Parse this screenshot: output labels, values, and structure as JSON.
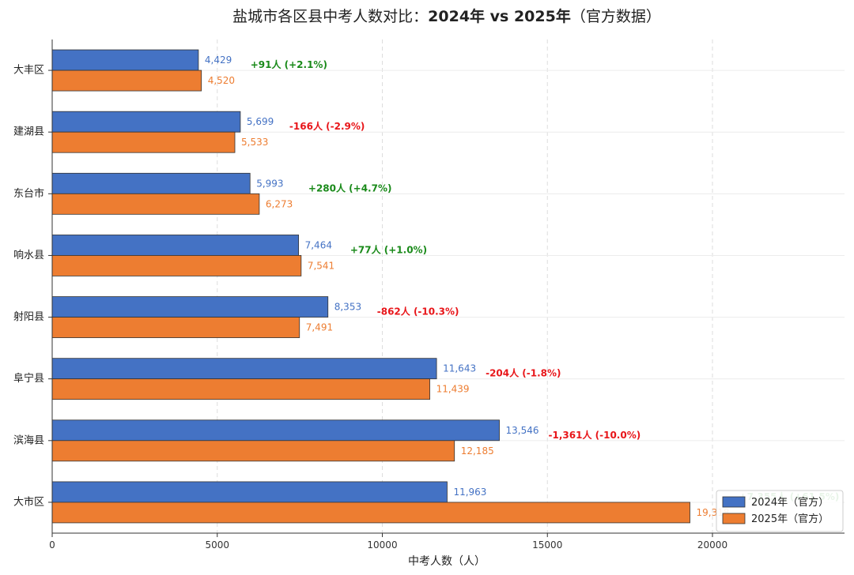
{
  "chart_data": {
    "type": "bar",
    "orientation": "horizontal",
    "title_prefix": "盐城市各区县中考人数对比：",
    "title_bold": "2024年 vs 2025年",
    "title_suffix": "（官方数据）",
    "xlabel": "中考人数（人）",
    "ylabel": "",
    "xlim": [
      0,
      24000
    ],
    "xticks": [
      0,
      5000,
      10000,
      15000,
      20000
    ],
    "grid": true,
    "legend_position": "bottom-right",
    "categories": [
      "大丰区",
      "建湖县",
      "东台市",
      "响水县",
      "射阳县",
      "阜宁县",
      "滨海县",
      "大市区"
    ],
    "series": [
      {
        "name": "2024年（官方）",
        "color": "#4472c4",
        "label_color": "#4472c4",
        "values": [
          4429,
          5699,
          5993,
          7464,
          8353,
          11643,
          13546,
          11963
        ],
        "labels": [
          "4,429",
          "5,699",
          "5,993",
          "7,464",
          "8,353",
          "11,643",
          "13,546",
          "11,963"
        ]
      },
      {
        "name": "2025年（官方）",
        "color": "#ed7d31",
        "label_color": "#ed7d31",
        "values": [
          4520,
          5533,
          6273,
          7541,
          7491,
          11439,
          12185,
          19318
        ],
        "labels": [
          "4,520",
          "5,533",
          "6,273",
          "7,541",
          "7,491",
          "11,439",
          "12,185",
          "19,318"
        ]
      }
    ],
    "annotations": [
      {
        "text": "+91人 (+2.1%)",
        "color": "#1a8a1a"
      },
      {
        "text": "-166人 (-2.9%)",
        "color": "#e8161a"
      },
      {
        "text": "+280人 (+4.7%)",
        "color": "#1a8a1a"
      },
      {
        "text": "+77人 (+1.0%)",
        "color": "#1a8a1a"
      },
      {
        "text": "-862人 (-10.3%)",
        "color": "#e8161a"
      },
      {
        "text": "-204人 (-1.8%)",
        "color": "#e8161a"
      },
      {
        "text": "-1,361人 (-10.0%)",
        "color": "#e8161a"
      },
      {
        "text": "+7,355人 (+61.5%)",
        "color": "#1a8a1a"
      }
    ]
  }
}
